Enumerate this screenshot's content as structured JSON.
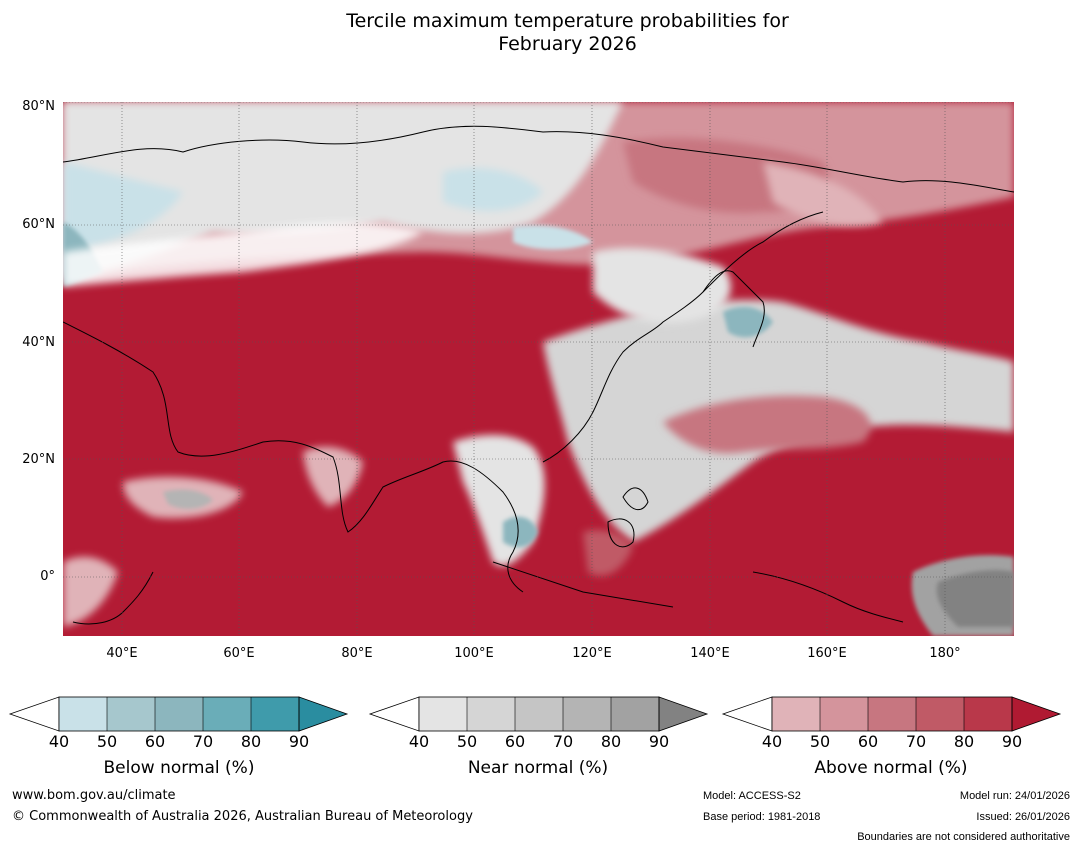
{
  "title_line1": "Tercile maximum temperature probabilities for",
  "title_line2": "February 2026",
  "map": {
    "lat_labels": [
      "80°N",
      "60°N",
      "40°N",
      "20°N",
      "0°"
    ],
    "lon_labels": [
      "40°E",
      "60°E",
      "80°E",
      "100°E",
      "120°E",
      "140°E",
      "160°E",
      "180°"
    ],
    "ocean_color": "#b31b34",
    "land_color": "#d6d6d6"
  },
  "legend": {
    "ticks": [
      "40",
      "50",
      "60",
      "70",
      "80",
      "90"
    ],
    "below": {
      "label": "Below normal (%)",
      "colors": [
        "#c9e1e8",
        "#a6c7cd",
        "#8cb6be",
        "#6aadb8",
        "#3f9bab",
        "#2a8da0"
      ]
    },
    "near": {
      "label": "Near normal (%)",
      "colors": [
        "#e4e4e4",
        "#d5d5d5",
        "#c5c5c5",
        "#b4b4b4",
        "#a2a2a2",
        "#828282"
      ]
    },
    "above": {
      "label": "Above normal (%)",
      "colors": [
        "#e0b3b8",
        "#d4949c",
        "#c77680",
        "#c05a66",
        "#b9384a",
        "#b01a32"
      ]
    }
  },
  "footer": {
    "website": "www.bom.gov.au/climate",
    "copyright": "© Commonwealth of Australia 2026, Australian Bureau of Meteorology",
    "model": "Model: ACCESS-S2",
    "base_period": "Base period: 1981-2018",
    "model_run": "Model run: 24/01/2026",
    "issued": "Issued: 26/01/2026",
    "disclaimer": "Boundaries are not considered authoritative"
  }
}
